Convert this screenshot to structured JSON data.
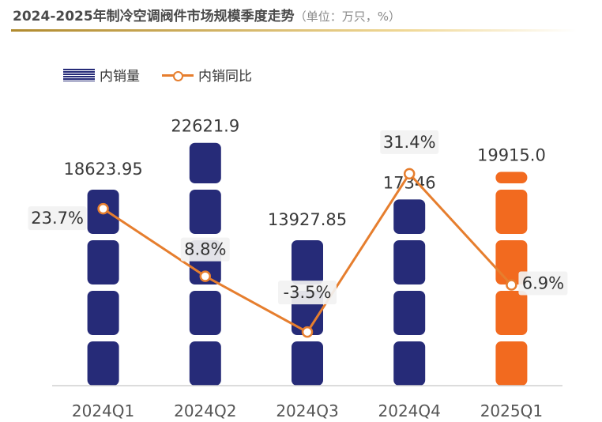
{
  "header": {
    "title": "2024-2025年制冷空调阀件市场规模季度走势",
    "unit": "（单位：万只，%）"
  },
  "legend": {
    "bar_label": "内销量",
    "line_label": "内销同比"
  },
  "colors": {
    "bar": "#262b78",
    "bar_highlight": "#f26a1f",
    "line": "#e67e2e",
    "axis": "#d0d0d0"
  },
  "chart_data": {
    "type": "bar",
    "title": "2024-2025年制冷空调阀件市场规模季度走势",
    "categories": [
      "2024Q1",
      "2024Q2",
      "2024Q3",
      "2024Q4",
      "2025Q1"
    ],
    "series": [
      {
        "name": "内销量",
        "type": "bar",
        "values": [
          18623.95,
          22621.9,
          13927.85,
          17346,
          19915.0
        ],
        "labels": [
          "18623.95",
          "22621.9",
          "13927.85",
          "17346",
          "19915.0"
        ]
      },
      {
        "name": "内销同比",
        "type": "line",
        "values": [
          23.7,
          8.8,
          -3.5,
          31.4,
          6.9
        ],
        "labels": [
          "23.7%",
          "8.8%",
          "-3.5%",
          "31.4%",
          "6.9%"
        ]
      }
    ],
    "ylim_bar": [
      0,
      24000
    ],
    "ylim_line": [
      -8,
      34
    ],
    "highlight_index": 4,
    "legend_position": "top-left"
  }
}
